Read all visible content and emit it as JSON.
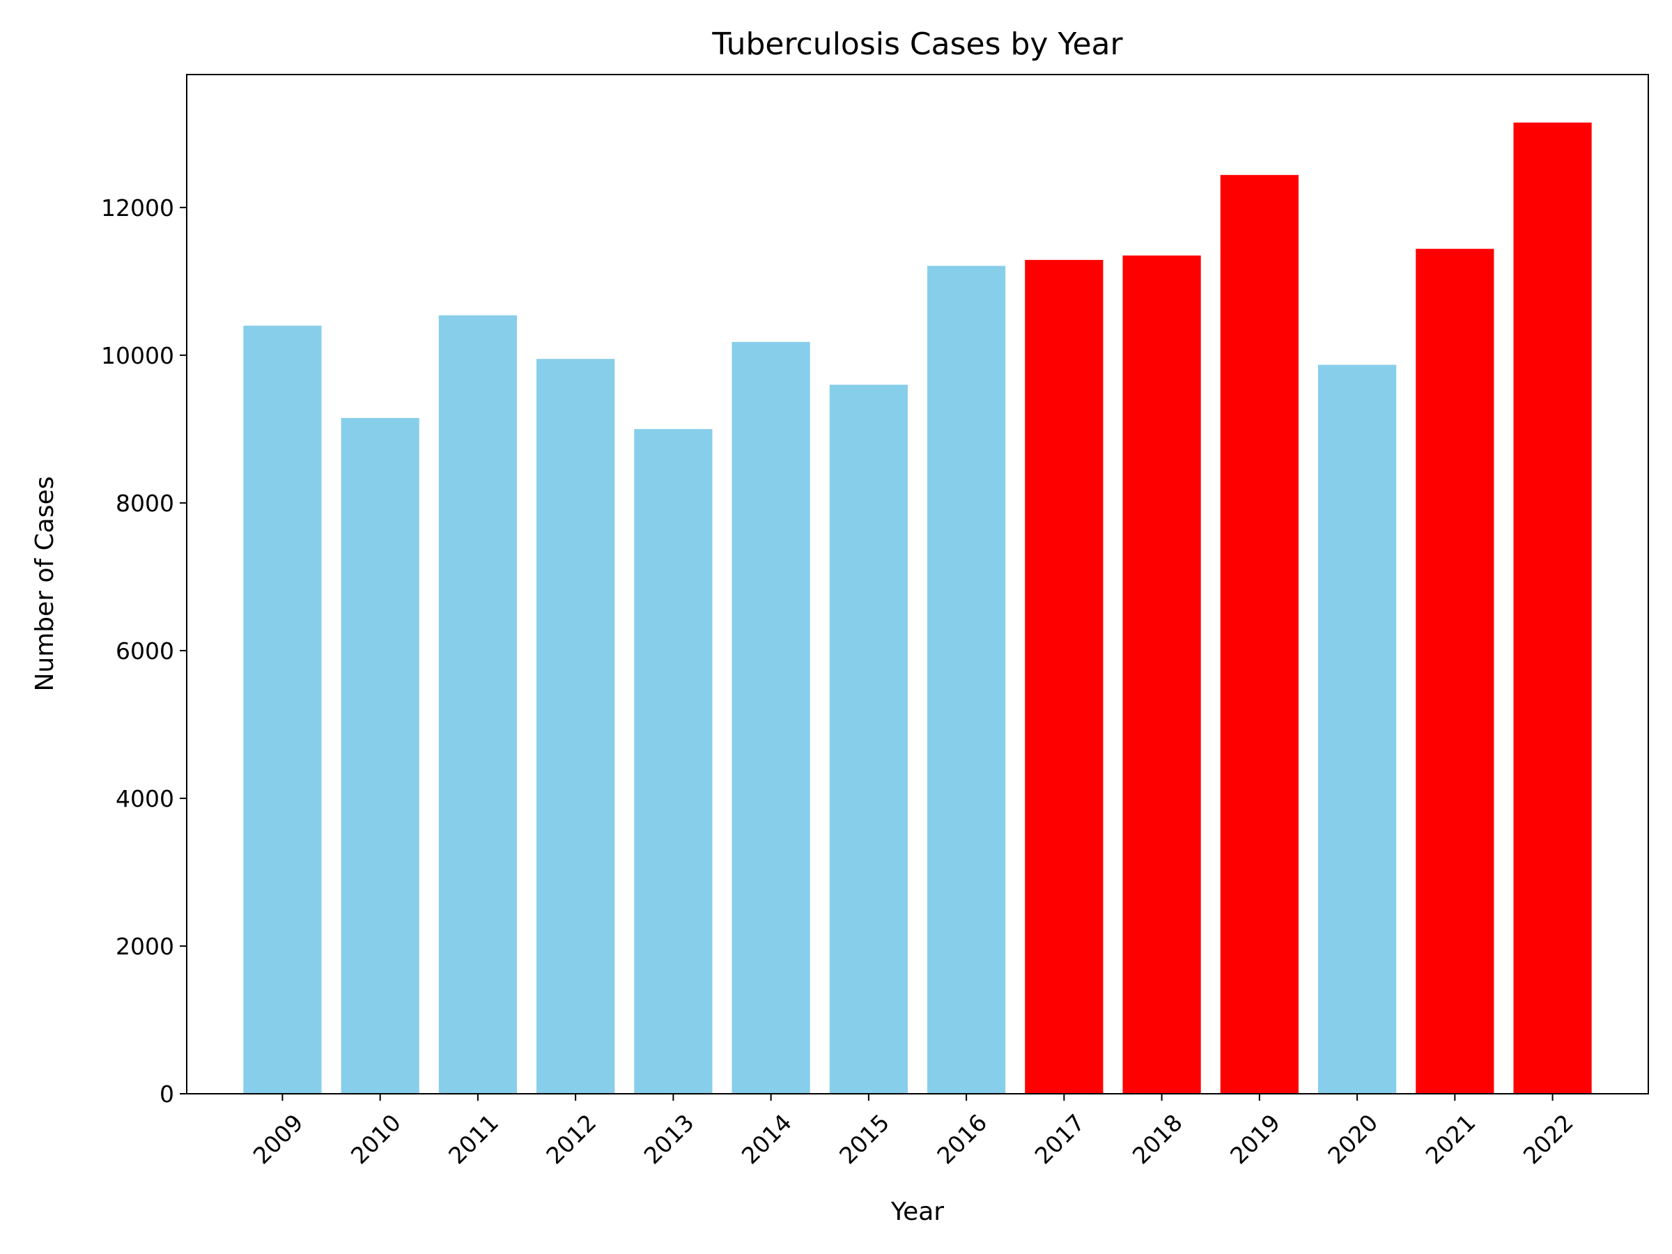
{
  "chart_data": {
    "type": "bar",
    "title": "Tuberculosis Cases by Year",
    "xlabel": "Year",
    "ylabel": "Number of Cases",
    "categories": [
      "2009",
      "2010",
      "2011",
      "2012",
      "2013",
      "2014",
      "2015",
      "2016",
      "2017",
      "2018",
      "2019",
      "2020",
      "2021",
      "2022"
    ],
    "values": [
      10400,
      9150,
      10540,
      9950,
      9000,
      10180,
      9600,
      11210,
      11290,
      11350,
      12440,
      9870,
      11440,
      13150
    ],
    "bar_colors": [
      "#87CEEB",
      "#87CEEB",
      "#87CEEB",
      "#87CEEB",
      "#87CEEB",
      "#87CEEB",
      "#87CEEB",
      "#87CEEB",
      "#FF0000",
      "#FF0000",
      "#FF0000",
      "#87CEEB",
      "#FF0000",
      "#FF0000"
    ],
    "yticks": [
      0,
      2000,
      4000,
      6000,
      8000,
      10000,
      12000
    ],
    "ylim": [
      0,
      13800
    ],
    "grid": false,
    "legend": false
  }
}
